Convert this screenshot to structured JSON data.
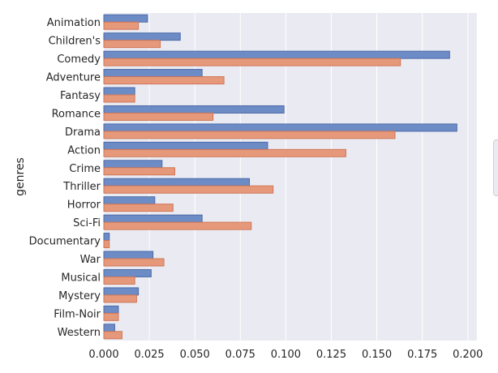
{
  "chart_data": {
    "type": "bar",
    "orientation": "horizontal",
    "ylabel": "genres",
    "xlabel": "",
    "xlim": [
      0,
      0.205
    ],
    "xticks": [
      "0.000",
      "0.025",
      "0.050",
      "0.075",
      "0.100",
      "0.125",
      "0.150",
      "0.175",
      "0.200"
    ],
    "grid": true,
    "legend_placement": "right (clipped)",
    "categories": [
      "Animation",
      "Children's",
      "Comedy",
      "Adventure",
      "Fantasy",
      "Romance",
      "Drama",
      "Action",
      "Crime",
      "Thriller",
      "Horror",
      "Sci-Fi",
      "Documentary",
      "War",
      "Musical",
      "Mystery",
      "Film-Noir",
      "Western"
    ],
    "series": [
      {
        "color": "#6d8cc6",
        "values": [
          0.024,
          0.042,
          0.19,
          0.054,
          0.017,
          0.099,
          0.194,
          0.09,
          0.032,
          0.08,
          0.028,
          0.054,
          0.003,
          0.027,
          0.026,
          0.019,
          0.008,
          0.006
        ]
      },
      {
        "color": "#e6997a",
        "values": [
          0.019,
          0.031,
          0.163,
          0.066,
          0.017,
          0.06,
          0.16,
          0.133,
          0.039,
          0.093,
          0.038,
          0.081,
          0.003,
          0.033,
          0.017,
          0.018,
          0.008,
          0.01
        ]
      }
    ]
  },
  "colors": {
    "background": "#eaeaf2",
    "grid": "#ffffff",
    "series1_edge": "#4a6aa8",
    "series2_edge": "#cf7657"
  }
}
